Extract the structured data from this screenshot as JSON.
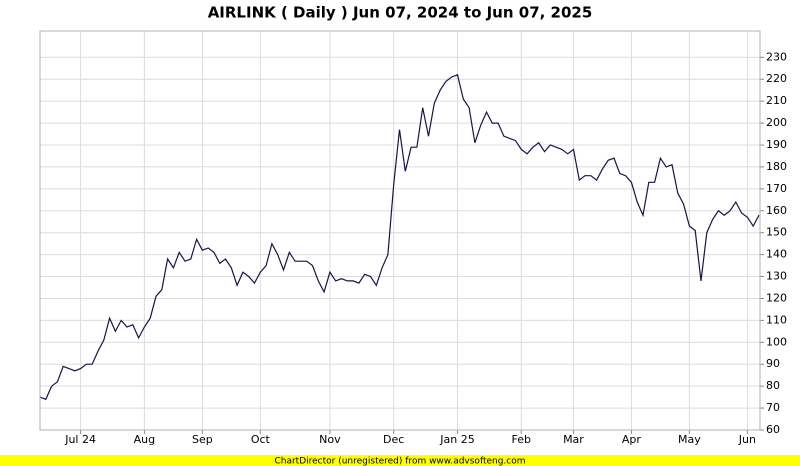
{
  "chart_data": {
    "type": "line",
    "title": "AIRLINK ( Daily ) Jun 07, 2024 to Jun 07, 2025",
    "footer": "ChartDirector (unregistered) from www.advsofteng.com",
    "categories": [
      null,
      null,
      null,
      null,
      null,
      null,
      null,
      "Jul 24",
      null,
      null,
      null,
      null,
      null,
      null,
      null,
      null,
      null,
      null,
      "Aug",
      null,
      null,
      null,
      null,
      null,
      null,
      null,
      null,
      null,
      "Sep",
      null,
      null,
      null,
      null,
      null,
      null,
      null,
      null,
      null,
      "Oct",
      null,
      null,
      null,
      null,
      null,
      null,
      null,
      null,
      null,
      null,
      null,
      "Nov",
      null,
      null,
      null,
      null,
      null,
      null,
      null,
      null,
      null,
      null,
      "Dec",
      null,
      null,
      null,
      null,
      null,
      null,
      null,
      null,
      null,
      null,
      "Jan 25",
      null,
      null,
      null,
      null,
      null,
      null,
      null,
      null,
      null,
      null,
      "Feb",
      null,
      null,
      null,
      null,
      null,
      null,
      null,
      null,
      "Mar",
      null,
      null,
      null,
      null,
      null,
      null,
      null,
      null,
      null,
      "Apr",
      null,
      null,
      null,
      null,
      null,
      null,
      null,
      null,
      null,
      "May",
      null,
      null,
      null,
      null,
      null,
      null,
      null,
      null,
      null,
      "Jun",
      null,
      null
    ],
    "series": [
      {
        "color": "#14144f",
        "values": [
          75,
          74,
          80,
          82,
          89,
          88,
          87,
          88,
          90,
          90,
          96,
          101,
          111,
          105,
          110,
          107,
          108,
          102,
          107,
          111,
          121,
          124,
          138,
          134,
          141,
          137,
          138,
          147,
          142,
          143,
          141,
          136,
          138,
          134,
          126,
          132,
          130,
          127,
          132,
          135,
          145,
          140,
          133,
          141,
          137,
          137,
          137,
          135,
          128,
          123,
          132,
          128,
          129,
          128,
          128,
          127,
          131,
          130,
          126,
          134,
          140,
          172,
          197,
          178,
          189,
          189,
          207,
          194,
          209,
          215,
          219,
          221,
          222,
          211,
          207,
          191,
          199,
          205,
          200,
          200,
          194,
          193,
          192,
          188,
          186,
          189,
          191,
          187,
          190,
          189,
          188,
          186,
          188,
          174,
          176,
          176,
          174,
          179,
          183,
          184,
          177,
          176,
          173,
          164,
          158,
          173,
          173,
          184,
          180,
          181,
          168,
          163,
          153,
          151,
          128,
          150,
          156,
          160,
          158,
          160,
          164,
          159,
          157,
          153,
          158
        ]
      }
    ],
    "ylim": [
      60,
      242
    ],
    "yticks": [
      60,
      70,
      80,
      90,
      100,
      110,
      120,
      130,
      140,
      150,
      160,
      170,
      180,
      190,
      200,
      210,
      220,
      230
    ],
    "grid": true
  }
}
